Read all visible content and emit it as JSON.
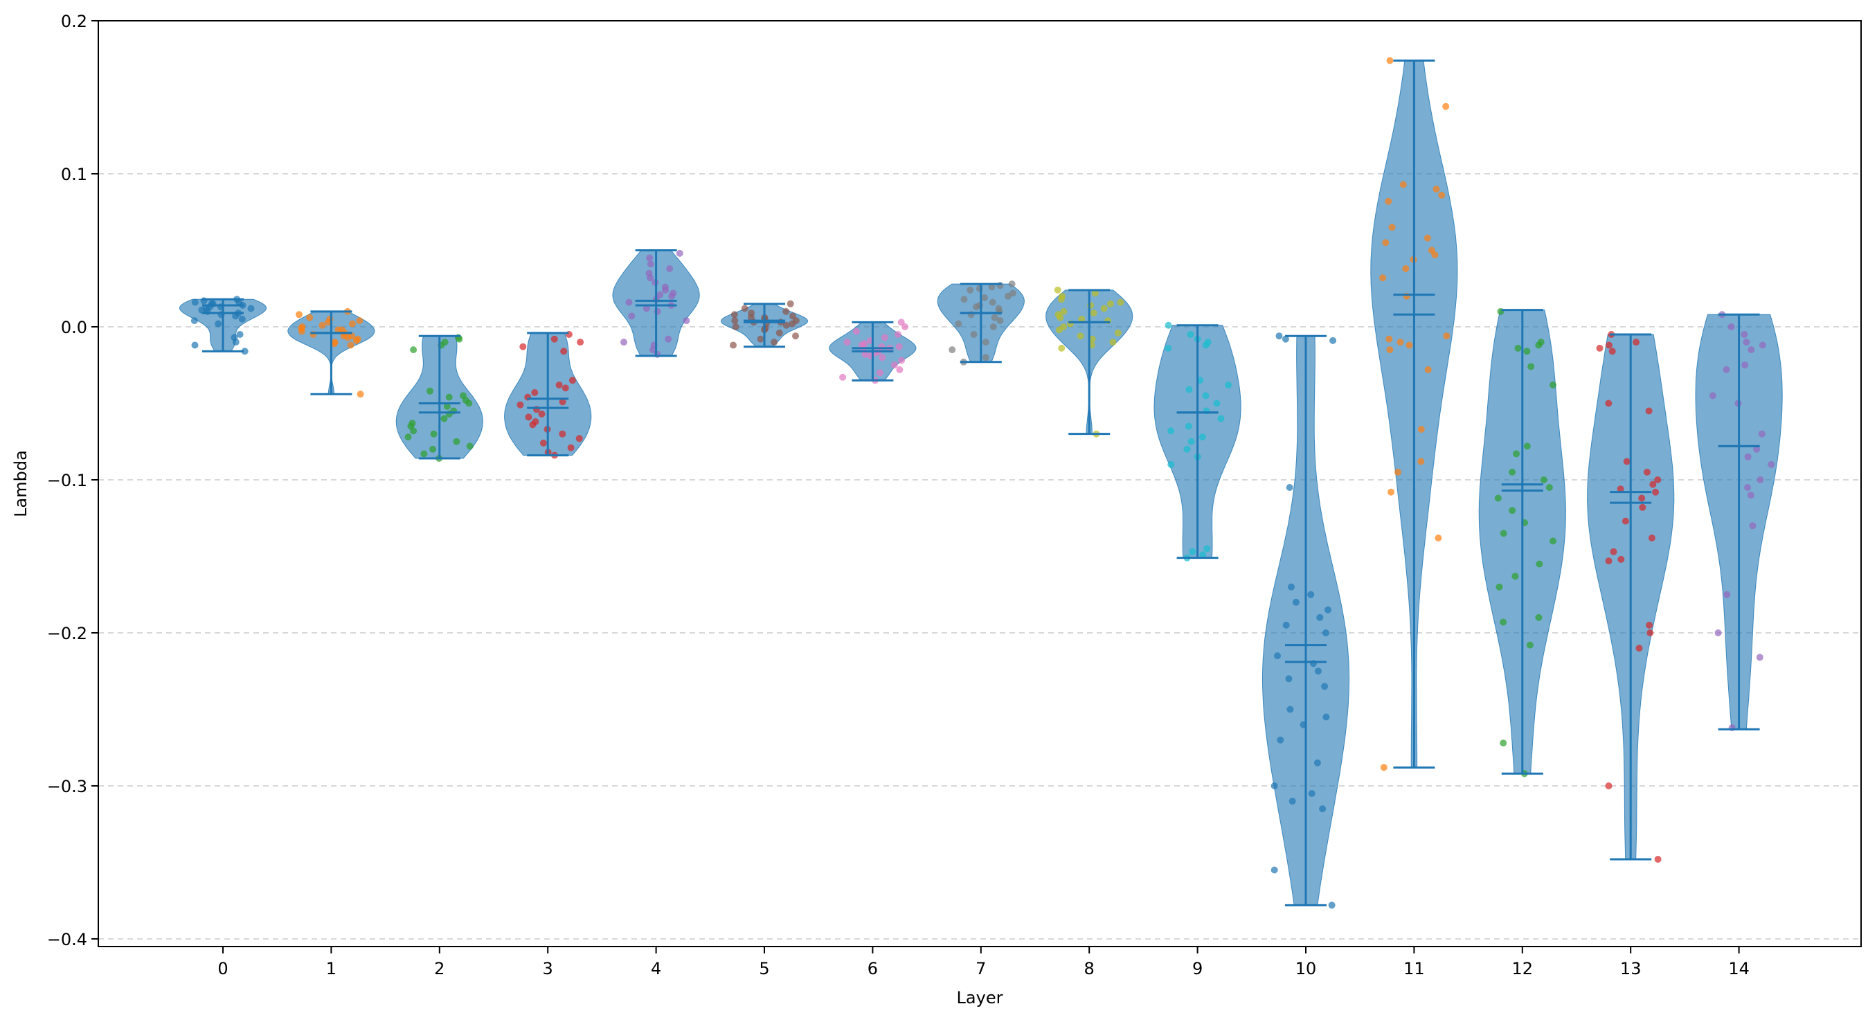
{
  "chart_data": {
    "type": "violin",
    "title": "",
    "xlabel": "Layer",
    "ylabel": "Lambda",
    "ylim": [
      -0.405,
      0.2
    ],
    "yticks": [
      0.2,
      0.1,
      0.0,
      -0.1,
      -0.2,
      -0.3,
      -0.4
    ],
    "ytick_labels": [
      "0.2",
      "0.1",
      "0.0",
      "−0.1",
      "−0.2",
      "−0.3",
      "−0.4"
    ],
    "categories": [
      "0",
      "1",
      "2",
      "3",
      "4",
      "5",
      "6",
      "7",
      "8",
      "9",
      "10",
      "11",
      "12",
      "13",
      "14"
    ],
    "grid": {
      "axis": "y",
      "style": "dashed"
    },
    "violin_color": "#1f77b4",
    "point_colors": [
      "#1f77b4",
      "#ff7f0e",
      "#2ca02c",
      "#d62728",
      "#9467bd",
      "#8c564b",
      "#e377c2",
      "#7f7f7f",
      "#bcbd22",
      "#17becf",
      "#1f77b4",
      "#ff7f0e",
      "#2ca02c",
      "#d62728",
      "#9467bd"
    ],
    "series": [
      {
        "layer": "0",
        "min": -0.016,
        "max": 0.018,
        "mean": 0.009,
        "median": 0.014,
        "points": [
          0.018,
          0.017,
          0.016,
          0.015,
          0.014,
          0.013,
          0.012,
          0.011,
          0.01,
          0.008,
          0.007,
          0.005,
          0.004,
          0.002,
          -0.005,
          -0.007,
          -0.01,
          -0.012,
          -0.016,
          0.012,
          0.015,
          0.016,
          0.013,
          0.009
        ]
      },
      {
        "layer": "1",
        "min": -0.044,
        "max": 0.01,
        "mean": -0.004,
        "median": -0.004,
        "points": [
          0.01,
          0.008,
          0.006,
          0.004,
          0.003,
          0.002,
          0.0,
          -0.001,
          -0.002,
          -0.003,
          -0.004,
          -0.005,
          -0.006,
          -0.007,
          -0.008,
          -0.009,
          -0.01,
          -0.011,
          -0.012,
          -0.044,
          0.001,
          -0.002,
          0.005,
          -0.006
        ]
      },
      {
        "layer": "2",
        "min": -0.086,
        "max": -0.006,
        "mean": -0.05,
        "median": -0.056,
        "points": [
          -0.007,
          -0.008,
          -0.01,
          -0.012,
          -0.015,
          -0.042,
          -0.045,
          -0.048,
          -0.05,
          -0.052,
          -0.055,
          -0.057,
          -0.06,
          -0.063,
          -0.065,
          -0.068,
          -0.07,
          -0.072,
          -0.075,
          -0.078,
          -0.08,
          -0.083,
          -0.086,
          -0.046
        ]
      },
      {
        "layer": "3",
        "min": -0.084,
        "max": -0.004,
        "mean": -0.047,
        "median": -0.053,
        "points": [
          -0.005,
          -0.008,
          -0.01,
          -0.013,
          -0.016,
          -0.035,
          -0.038,
          -0.04,
          -0.043,
          -0.046,
          -0.049,
          -0.051,
          -0.054,
          -0.057,
          -0.059,
          -0.062,
          -0.064,
          -0.067,
          -0.07,
          -0.073,
          -0.076,
          -0.079,
          -0.082,
          -0.084
        ]
      },
      {
        "layer": "4",
        "min": -0.019,
        "max": 0.05,
        "mean": 0.017,
        "median": 0.014,
        "points": [
          0.048,
          0.045,
          0.041,
          0.038,
          0.035,
          0.032,
          0.029,
          0.026,
          0.024,
          0.022,
          0.02,
          0.018,
          0.016,
          0.014,
          0.012,
          0.01,
          0.007,
          0.004,
          -0.008,
          -0.01,
          -0.012,
          -0.015,
          -0.018,
          0.021
        ]
      },
      {
        "layer": "5",
        "min": -0.013,
        "max": 0.015,
        "mean": 0.004,
        "median": 0.003,
        "points": [
          0.015,
          0.012,
          0.01,
          0.009,
          0.008,
          0.007,
          0.006,
          0.005,
          0.004,
          0.003,
          0.003,
          0.002,
          0.001,
          0.0,
          -0.002,
          -0.004,
          -0.006,
          -0.008,
          -0.01,
          -0.012,
          0.006,
          0.004,
          0.002,
          -0.001
        ]
      },
      {
        "layer": "6",
        "min": -0.035,
        "max": 0.003,
        "mean": -0.014,
        "median": -0.016,
        "points": [
          0.003,
          0.0,
          -0.003,
          -0.005,
          -0.007,
          -0.009,
          -0.01,
          -0.011,
          -0.012,
          -0.013,
          -0.014,
          -0.015,
          -0.016,
          -0.018,
          -0.02,
          -0.022,
          -0.025,
          -0.028,
          -0.03,
          -0.033,
          -0.035,
          -0.013,
          -0.017,
          -0.019
        ]
      },
      {
        "layer": "7",
        "min": -0.023,
        "max": 0.028,
        "mean": 0.009,
        "median": 0.009,
        "points": [
          0.028,
          0.027,
          0.026,
          0.025,
          0.024,
          0.022,
          0.02,
          0.018,
          0.016,
          0.014,
          0.012,
          0.01,
          0.008,
          0.006,
          0.004,
          0.002,
          0.0,
          -0.005,
          -0.01,
          -0.015,
          -0.02,
          -0.023,
          0.019,
          0.013
        ]
      },
      {
        "layer": "8",
        "min": -0.07,
        "max": 0.024,
        "mean": 0.003,
        "median": 0.003,
        "points": [
          0.024,
          0.022,
          0.02,
          0.018,
          0.016,
          0.014,
          0.012,
          0.01,
          0.008,
          0.006,
          0.004,
          0.002,
          0.0,
          -0.002,
          -0.004,
          -0.006,
          -0.008,
          -0.01,
          -0.012,
          -0.014,
          -0.07,
          0.015,
          0.009,
          0.005
        ]
      },
      {
        "layer": "9",
        "min": -0.151,
        "max": 0.001,
        "mean": -0.056,
        "median": -0.056,
        "points": [
          0.001,
          -0.005,
          -0.008,
          -0.01,
          -0.012,
          -0.014,
          -0.035,
          -0.038,
          -0.041,
          -0.045,
          -0.05,
          -0.055,
          -0.06,
          -0.065,
          -0.068,
          -0.072,
          -0.075,
          -0.08,
          -0.085,
          -0.09,
          -0.145,
          -0.147,
          -0.149,
          -0.151
        ]
      },
      {
        "layer": "10",
        "min": -0.378,
        "max": -0.006,
        "mean": -0.208,
        "median": -0.219,
        "points": [
          -0.006,
          -0.008,
          -0.009,
          -0.105,
          -0.17,
          -0.175,
          -0.18,
          -0.185,
          -0.19,
          -0.195,
          -0.2,
          -0.215,
          -0.22,
          -0.225,
          -0.23,
          -0.235,
          -0.25,
          -0.255,
          -0.26,
          -0.27,
          -0.285,
          -0.3,
          -0.305,
          -0.31,
          -0.315,
          -0.355,
          -0.378
        ]
      },
      {
        "layer": "11",
        "min": -0.288,
        "max": 0.174,
        "mean": 0.021,
        "median": 0.008,
        "points": [
          0.174,
          0.144,
          0.093,
          0.09,
          0.086,
          0.082,
          0.065,
          0.058,
          0.055,
          0.05,
          0.047,
          0.044,
          0.038,
          0.032,
          0.02,
          -0.006,
          -0.008,
          -0.01,
          -0.012,
          -0.015,
          -0.028,
          -0.067,
          -0.088,
          -0.095,
          -0.108,
          -0.138,
          -0.288
        ]
      },
      {
        "layer": "12",
        "min": -0.292,
        "max": 0.011,
        "mean": -0.103,
        "median": -0.107,
        "points": [
          0.01,
          -0.01,
          -0.012,
          -0.014,
          -0.016,
          -0.026,
          -0.038,
          -0.078,
          -0.083,
          -0.095,
          -0.1,
          -0.105,
          -0.112,
          -0.12,
          -0.128,
          -0.135,
          -0.14,
          -0.155,
          -0.163,
          -0.17,
          -0.19,
          -0.193,
          -0.208,
          -0.272,
          -0.292
        ]
      },
      {
        "layer": "13",
        "min": -0.348,
        "max": -0.005,
        "mean": -0.108,
        "median": -0.115,
        "points": [
          -0.005,
          -0.01,
          -0.012,
          -0.014,
          -0.016,
          -0.05,
          -0.055,
          -0.088,
          -0.095,
          -0.1,
          -0.103,
          -0.106,
          -0.108,
          -0.112,
          -0.118,
          -0.127,
          -0.138,
          -0.147,
          -0.152,
          -0.153,
          -0.195,
          -0.2,
          -0.21,
          -0.3,
          -0.348
        ]
      },
      {
        "layer": "14",
        "min": -0.263,
        "max": 0.008,
        "mean": -0.078,
        "median": -0.078,
        "points": [
          0.008,
          0.0,
          -0.005,
          -0.01,
          -0.012,
          -0.015,
          -0.025,
          -0.028,
          -0.045,
          -0.05,
          -0.07,
          -0.08,
          -0.085,
          -0.09,
          -0.1,
          -0.105,
          -0.11,
          -0.13,
          -0.175,
          -0.2,
          -0.216,
          -0.262
        ]
      }
    ]
  }
}
